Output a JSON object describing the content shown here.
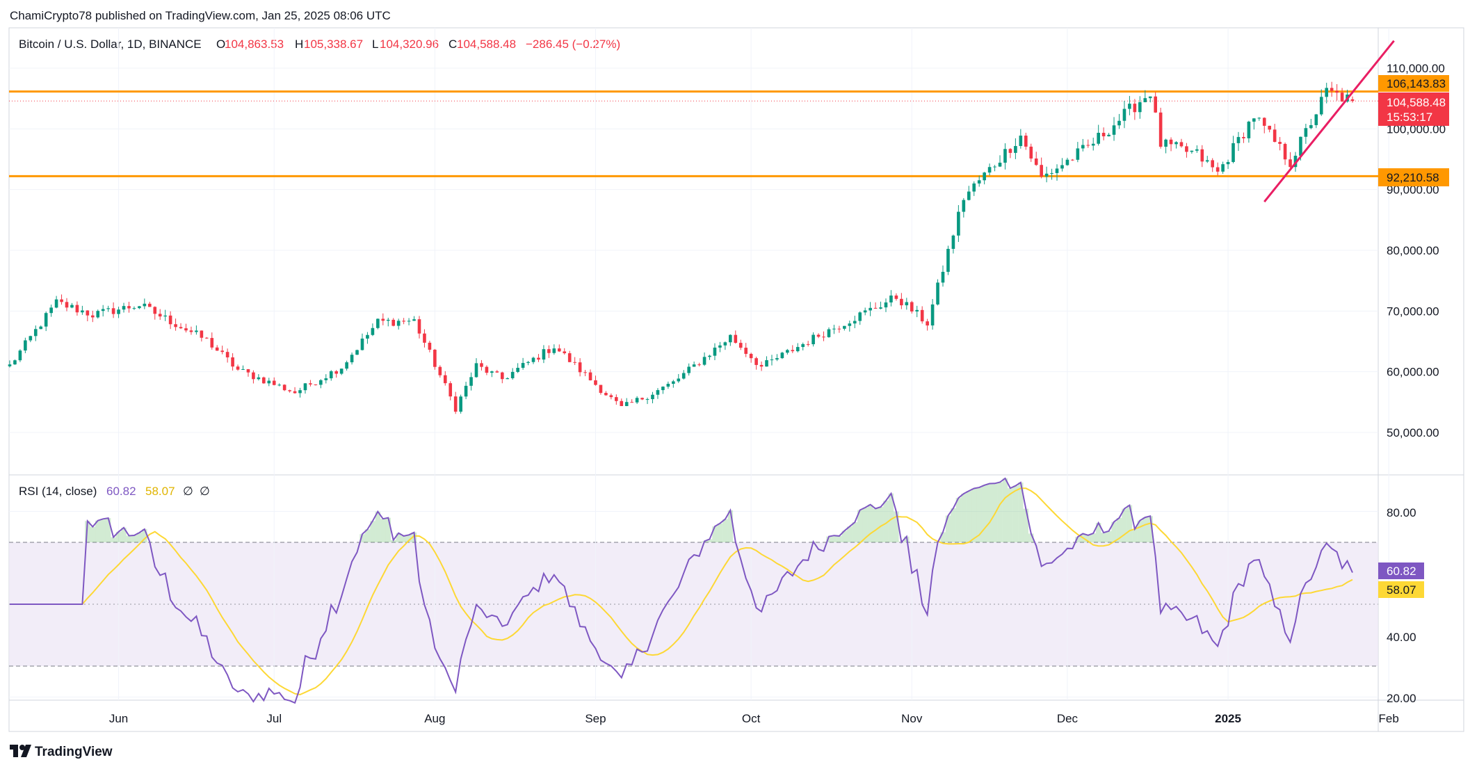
{
  "header": {
    "published": "ChamiCrypto78 published on TradingView.com, Jan 25, 2025 08:06 UTC"
  },
  "legend": {
    "symbol": "Bitcoin / U.S. Dollar, 1D, BINANCE",
    "o_label": "O",
    "o_value": "104,863.53",
    "h_label": "H",
    "h_value": "105,338.67",
    "l_label": "L",
    "l_value": "104,320.96",
    "c_label": "C",
    "c_value": "104,588.48",
    "change": "−286.45 (−0.27%)"
  },
  "rsi_legend": {
    "label": "RSI (14, close)",
    "rsi": "60.82",
    "ma": "58.07",
    "extra1": "∅",
    "extra2": "∅"
  },
  "price_scale": {
    "ticks": [
      "110,000.00",
      "100,000.00",
      "90,000.00",
      "80,000.00",
      "70,000.00",
      "60,000.00",
      "50,000.00"
    ],
    "resistance_label": "106,143.83",
    "last_price_label": "104,588.48",
    "countdown": "15:53:17",
    "support_label": "92,210.58"
  },
  "rsi_scale": {
    "ticks": [
      "80.00",
      "40.00",
      "20.00"
    ],
    "rsi_label": "60.82",
    "ma_label": "58.07"
  },
  "time_axis": [
    "Jun",
    "Jul",
    "Aug",
    "Sep",
    "Oct",
    "Nov",
    "Dec",
    "2025",
    "Feb"
  ],
  "footer": {
    "brand": "TradingView",
    "logo_icon": "tradingview-logo-icon"
  },
  "colors": {
    "up": "#089981",
    "down": "#f23645",
    "level": "#ff9800",
    "trend": "#e91e63",
    "rsi": "#7e57c2",
    "rsi_ma": "#fdd835",
    "rsi_band": "#ede7f6"
  },
  "chart_data": [
    {
      "type": "candlestick",
      "title": "Bitcoin / U.S. Dollar, 1D, BINANCE",
      "ylim": [
        45000,
        115000
      ],
      "date_range": [
        "2024-05-11",
        "2025-01-25"
      ],
      "close_anchors": [
        [
          "2024-05-11",
          61000
        ],
        [
          "2024-05-20",
          71400
        ],
        [
          "2024-05-27",
          69400
        ],
        [
          "2024-06-05",
          71000
        ],
        [
          "2024-06-18",
          65200
        ],
        [
          "2024-06-24",
          60300
        ],
        [
          "2024-07-05",
          56600
        ],
        [
          "2024-07-14",
          60800
        ],
        [
          "2024-07-21",
          68200
        ],
        [
          "2024-07-28",
          68400
        ],
        [
          "2024-08-05",
          54000
        ],
        [
          "2024-08-09",
          61000
        ],
        [
          "2024-08-14",
          58800
        ],
        [
          "2024-08-24",
          64200
        ],
        [
          "2024-09-06",
          54000
        ],
        [
          "2024-09-16",
          58200
        ],
        [
          "2024-09-27",
          65800
        ],
        [
          "2024-10-03",
          60800
        ],
        [
          "2024-10-14",
          66000
        ],
        [
          "2024-10-29",
          72300
        ],
        [
          "2024-11-04",
          68000
        ],
        [
          "2024-11-11",
          88700
        ],
        [
          "2024-11-22",
          98900
        ],
        [
          "2024-11-26",
          91900
        ],
        [
          "2024-12-05",
          97000
        ],
        [
          "2024-12-17",
          106100
        ],
        [
          "2024-12-19",
          97500
        ],
        [
          "2024-12-26",
          95800
        ],
        [
          "2024-12-30",
          92700
        ],
        [
          "2025-01-06",
          102200
        ],
        [
          "2025-01-13",
          94500
        ],
        [
          "2025-01-20",
          106100
        ],
        [
          "2025-01-25",
          104588
        ]
      ],
      "levels": [
        {
          "name": "resistance",
          "value": 106143.83
        },
        {
          "name": "support",
          "value": 92210.58
        }
      ],
      "trendline": {
        "from": [
          "2025-01-08",
          88000
        ],
        "to": [
          "2025-02-02",
          114500
        ]
      }
    },
    {
      "type": "line",
      "title": "RSI (14, close)",
      "ylim": [
        15,
        95
      ],
      "band": [
        30,
        70
      ],
      "series": [
        {
          "name": "RSI",
          "last": 60.82
        },
        {
          "name": "RSI-based MA",
          "last": 58.07
        }
      ]
    }
  ]
}
